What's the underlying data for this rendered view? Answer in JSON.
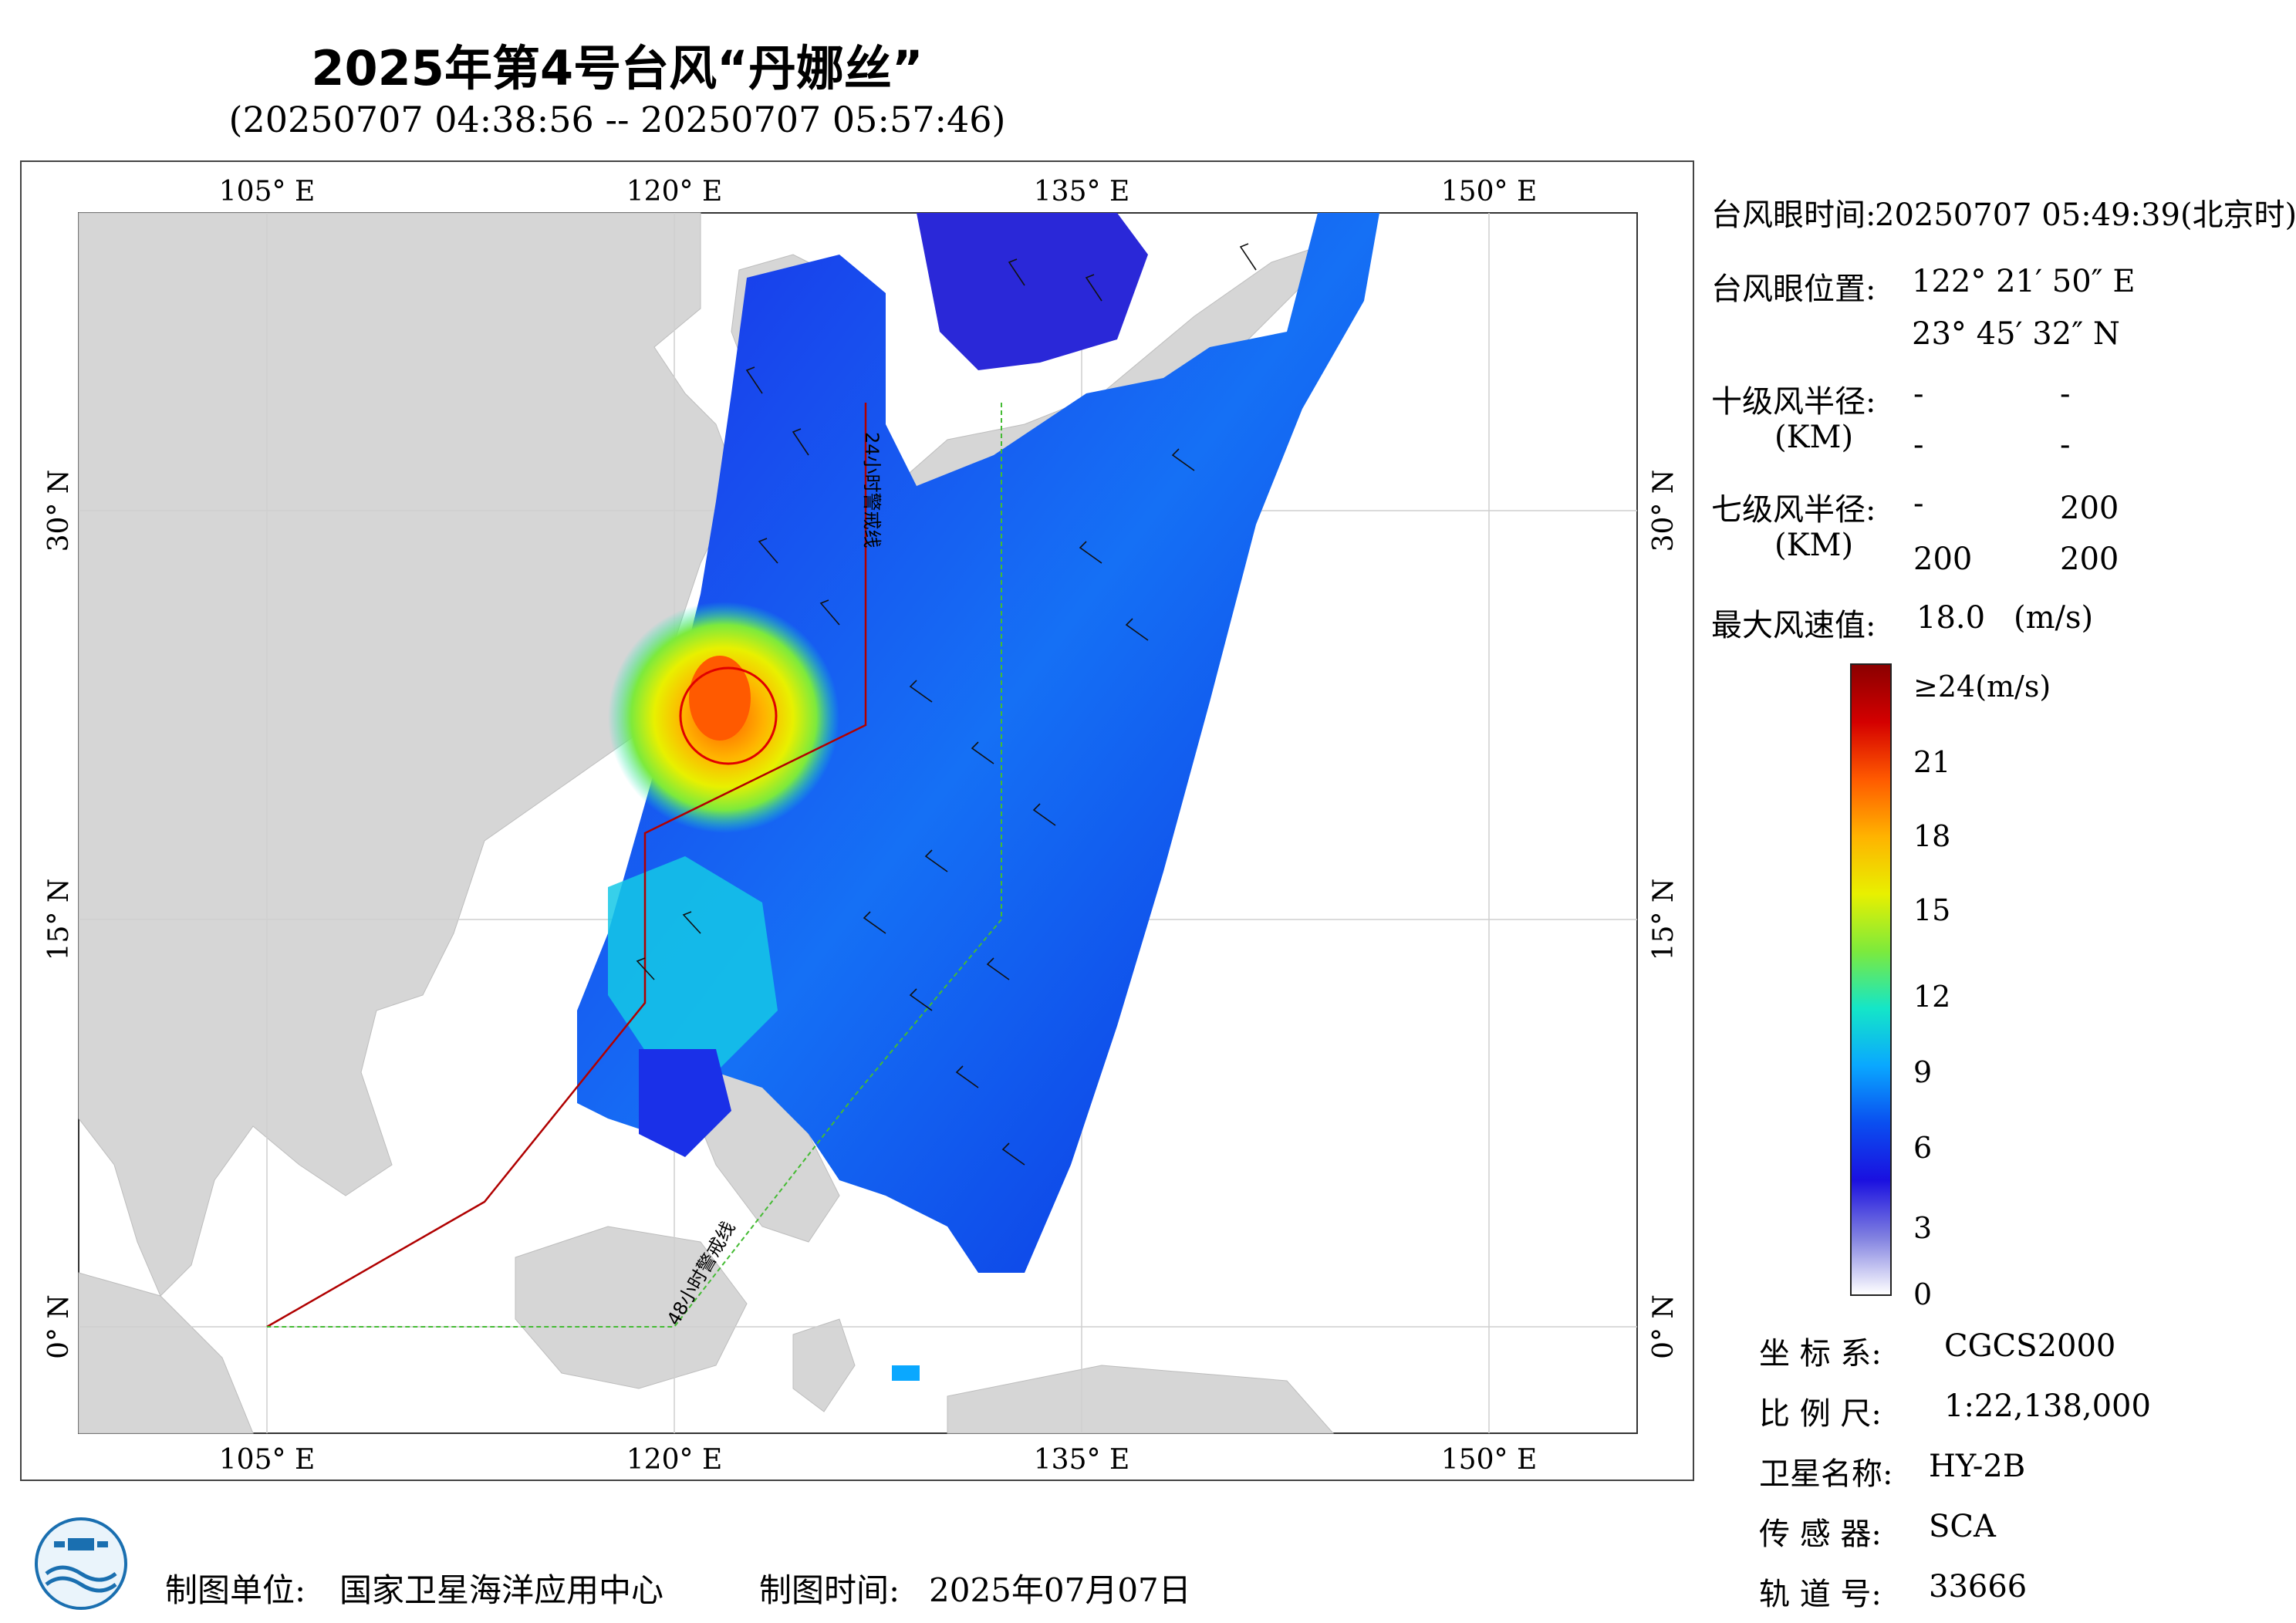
{
  "header": {
    "title": "2025年第4号台风“丹娜丝”",
    "subtitle": "(20250707 04:38:56 -- 20250707 05:57:46)"
  },
  "map": {
    "lon_labels": [
      "105° E",
      "120° E",
      "135° E",
      "150° E"
    ],
    "lat_labels": [
      "30° N",
      "15° N",
      "0° N"
    ],
    "line_labels": {
      "warning_24h": "24小时警戒线",
      "warning_48h": "48小时警戒线"
    },
    "colors": {
      "land": "#d6d6d6",
      "sea": "#ffffff",
      "track_24h": "#b00000",
      "track_48h": "#44bb33",
      "typhoon_circle": "#e00000"
    }
  },
  "info_panel": {
    "eye_time_label": "台风眼时间:",
    "eye_time_value": "20250707 05:49:39(北京时)",
    "eye_pos_label": "台风眼位置:",
    "eye_lon": "122° 21′ 50″ E",
    "eye_lat": "23° 45′ 32″ N",
    "r10_label": "十级风半径:",
    "r10_unit": "(KM)",
    "r10_values": [
      "-",
      "-",
      "-",
      "-"
    ],
    "r7_label": "七级风半径:",
    "r7_unit": "(KM)",
    "r7_values": [
      "-",
      "200",
      "200",
      "200"
    ],
    "max_wind_label": "最大风速值:",
    "max_wind_value": "18.0",
    "max_wind_unit": "(m/s)"
  },
  "colorbar": {
    "labels": [
      "≥24(m/s)",
      "21",
      "18",
      "15",
      "12",
      "9",
      "6",
      "3",
      "0"
    ],
    "stops": [
      "#8b0000",
      "#d40000",
      "#ff5a00",
      "#ffb300",
      "#e8f000",
      "#7dea3c",
      "#14e6c8",
      "#0aa8ff",
      "#0a4ff0",
      "#1a10e0",
      "#8080e0",
      "#ffffff"
    ]
  },
  "metadata": {
    "crs_label": "坐 标 系:",
    "crs_value": "CGCS2000",
    "scale_label": "比 例 尺:",
    "scale_value": "1:22,138,000",
    "satellite_label": "卫星名称:",
    "satellite_value": "HY-2B",
    "sensor_label": "传 感 器:",
    "sensor_value": "SCA",
    "orbit_label": "轨 道 号:",
    "orbit_value": "33666"
  },
  "footer": {
    "producer_label": "制图单位:",
    "producer_value": "国家卫星海洋应用中心",
    "date_label": "制图时间:",
    "date_value": "2025年07月07日",
    "logo_icon": "nsoas-logo-icon"
  }
}
